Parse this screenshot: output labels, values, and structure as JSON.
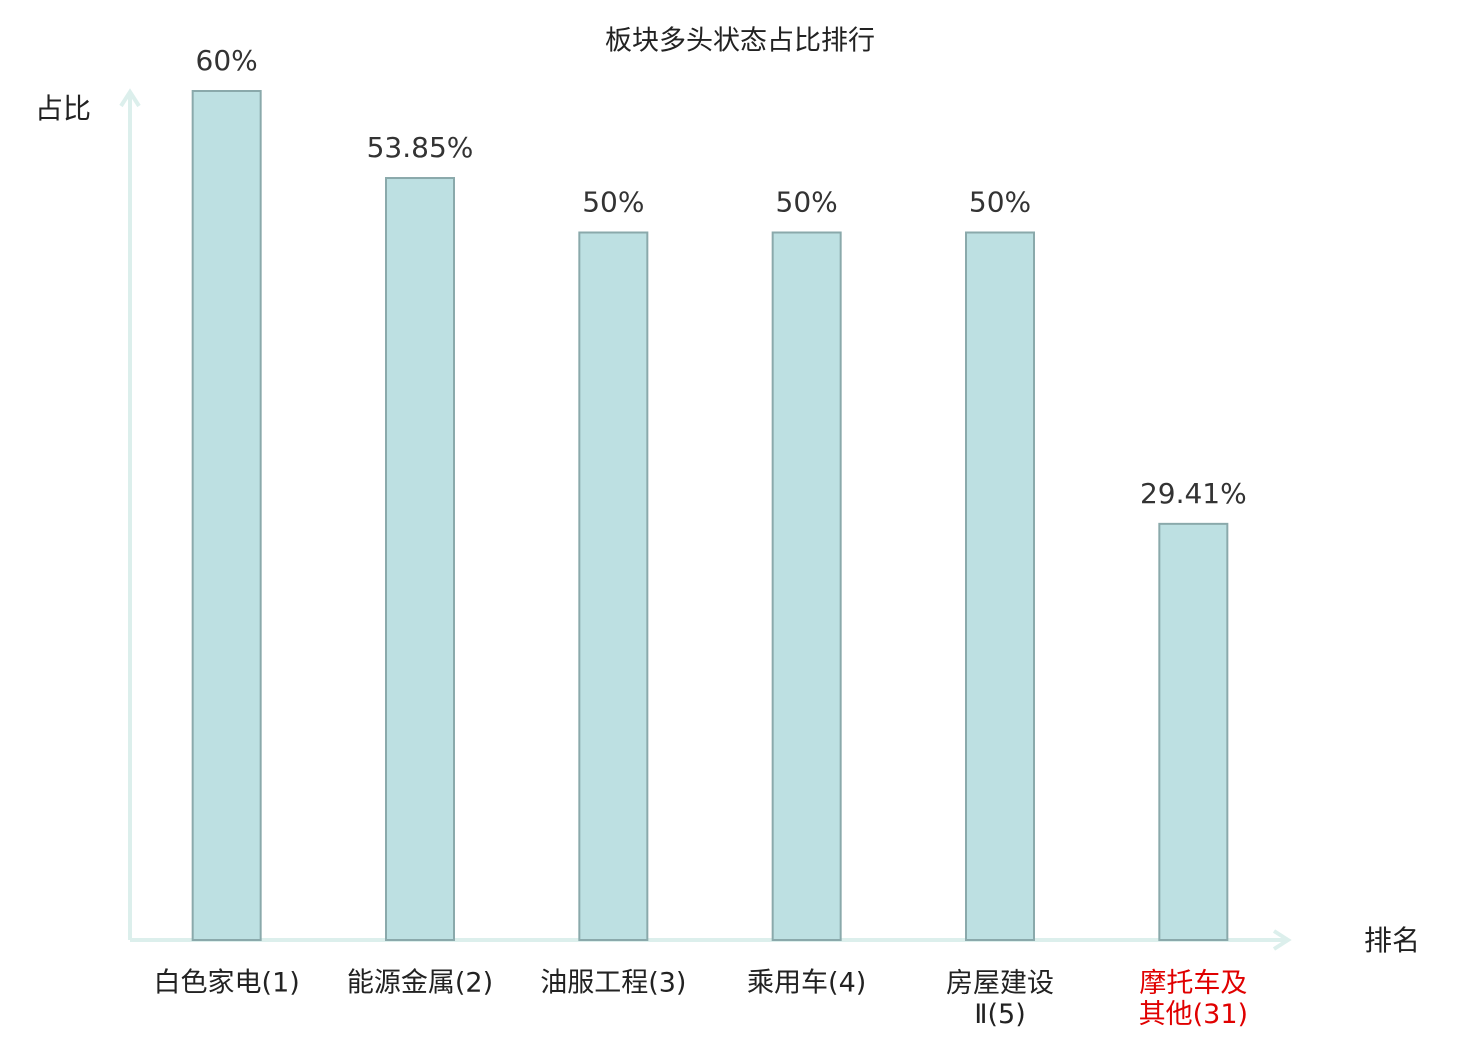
{
  "chart_data": {
    "type": "bar",
    "title": "板块多头状态占比排行",
    "y_label": "占比",
    "x_label": "排名",
    "categories": [
      "白色家电(1)",
      "能源金属(2)",
      "油服工程(3)",
      "乘用车(4)",
      "房屋建设Ⅱ(5)",
      "摩托车及其他(31)"
    ],
    "values": [
      60,
      53.85,
      50,
      50,
      50,
      29.41
    ],
    "value_labels": [
      "60%",
      "53.85%",
      "50%",
      "50%",
      "50%",
      "29.41%"
    ],
    "color": "#bde0e2",
    "category_label_colors": [
      "#222222",
      "#222222",
      "#222222",
      "#222222",
      "#222222",
      "#e00000"
    ],
    "ylim": [
      0,
      60
    ]
  }
}
